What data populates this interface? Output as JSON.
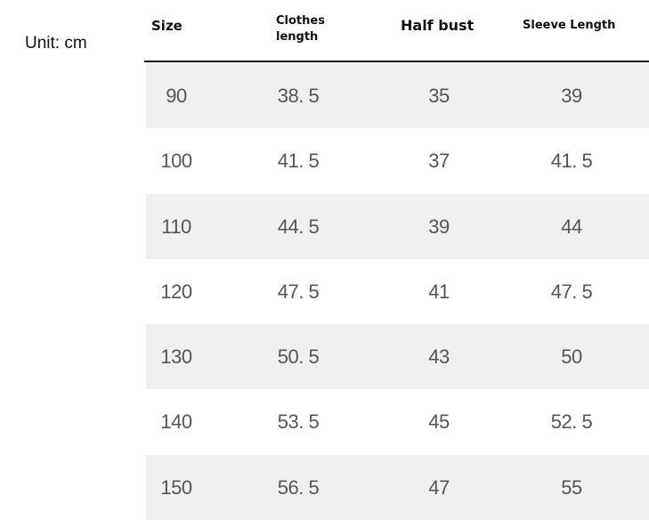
{
  "unit_label": "Unit: cm",
  "headers": [
    "Size",
    "Clothes length",
    "Half bust",
    "Sleeve Length"
  ],
  "header_lines": {
    "clothes_1": "Clothes",
    "clothes_2": "length"
  },
  "rows": [
    [
      "90",
      "38. 5",
      "35",
      "39"
    ],
    [
      "100",
      "41. 5",
      "37",
      "41. 5"
    ],
    [
      "110",
      "44. 5",
      "39",
      "44"
    ],
    [
      "120",
      "47. 5",
      "41",
      "47. 5"
    ],
    [
      "130",
      "50. 5",
      "43",
      "50"
    ],
    [
      "140",
      "53. 5",
      "45",
      "52. 5"
    ],
    [
      "150",
      "56. 5",
      "47",
      "55"
    ]
  ],
  "colors": {
    "row_shade": "#f0f0f0",
    "text": "#555555",
    "rule": "#111111"
  }
}
